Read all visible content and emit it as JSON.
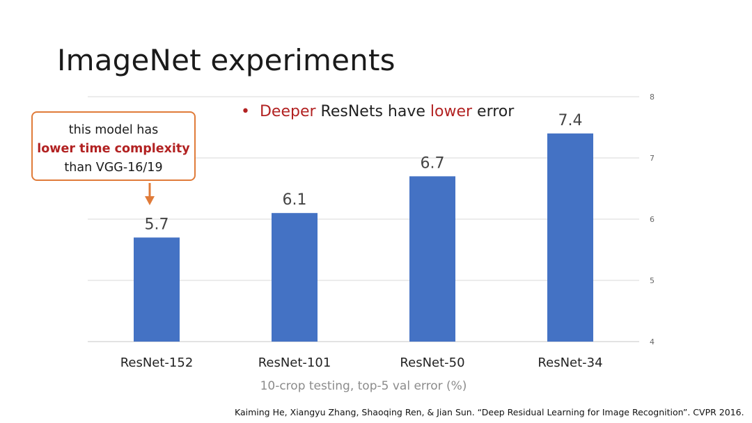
{
  "slide": {
    "title": "ImageNet experiments",
    "bullet": {
      "marker": "•",
      "w1": "Deeper",
      "w2": " ResNets have ",
      "w3": "lower",
      "w4": " error"
    },
    "callout": {
      "line1": "this model has",
      "line2": "lower time complexity",
      "line3": "than VGG-16/19"
    },
    "citation": "Kaiming He, Xiangyu Zhang, Shaoqing Ren, & Jian Sun. “Deep Residual Learning for Image Recognition”. CVPR 2016."
  },
  "colors": {
    "bar": "#4472c4",
    "grid": "#d9d9d9",
    "highlight": "#b22222",
    "callout_border": "#e07b39"
  },
  "chart_data": {
    "type": "bar",
    "categories": [
      "ResNet-152",
      "ResNet-101",
      "ResNet-50",
      "ResNet-34"
    ],
    "values": [
      5.7,
      6.1,
      6.7,
      7.4
    ],
    "value_labels": [
      "5.7",
      "6.1",
      "6.7",
      "7.4"
    ],
    "title": "",
    "xlabel": "10-crop testing, top-5 val error (%)",
    "ylabel": "",
    "ylim": [
      4,
      8
    ],
    "yticks": [
      "4",
      "5",
      "6",
      "7",
      "8"
    ],
    "y_axis_position": "right",
    "grid": true,
    "legend": "none"
  }
}
